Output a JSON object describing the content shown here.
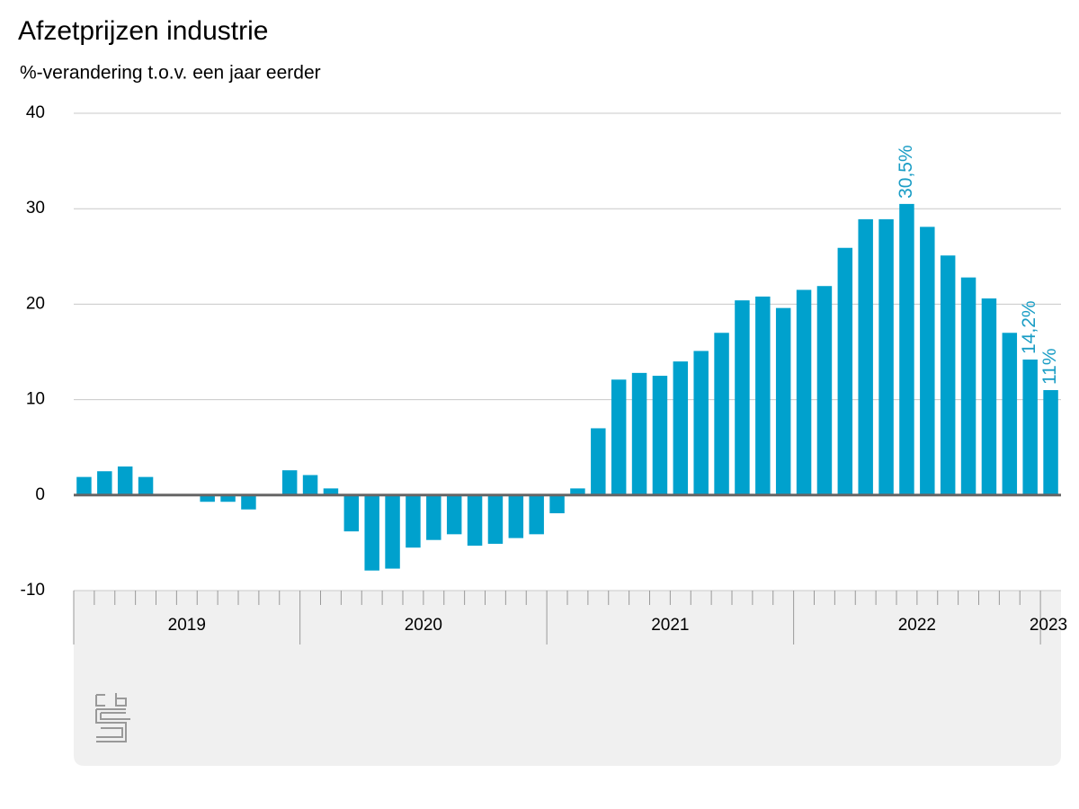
{
  "chart_data": {
    "type": "bar",
    "title": "Afzetprijzen industrie",
    "subtitle": "%-verandering t.o.v. een jaar eerder",
    "categories": [
      "2019",
      null,
      null,
      null,
      null,
      null,
      null,
      null,
      null,
      null,
      null,
      "2020",
      null,
      null,
      null,
      null,
      null,
      null,
      null,
      null,
      null,
      null,
      null,
      "2021",
      null,
      null,
      null,
      null,
      null,
      null,
      null,
      null,
      null,
      null,
      null,
      "2022",
      null,
      null,
      null,
      null,
      null,
      null,
      null,
      null,
      null,
      null,
      null,
      "2023"
    ],
    "values": [
      1.9,
      2.5,
      3.0,
      1.9,
      0,
      0,
      -0.7,
      -0.7,
      -1.5,
      0,
      2.6,
      2.1,
      0.7,
      -3.8,
      -7.9,
      -7.7,
      -5.5,
      -4.7,
      -4.1,
      -5.3,
      -5.1,
      -4.5,
      -4.1,
      -1.9,
      0.7,
      7.0,
      12.1,
      12.8,
      12.5,
      14.0,
      15.1,
      17.0,
      20.4,
      20.8,
      19.6,
      21.5,
      21.9,
      25.9,
      28.9,
      28.9,
      30.5,
      28.1,
      25.1,
      22.8,
      20.6,
      17.0,
      14.2,
      11
    ],
    "value_labels": [
      null,
      null,
      null,
      null,
      null,
      null,
      null,
      null,
      null,
      null,
      null,
      null,
      null,
      null,
      null,
      null,
      null,
      null,
      null,
      null,
      null,
      null,
      null,
      null,
      null,
      null,
      null,
      null,
      null,
      null,
      null,
      null,
      null,
      null,
      null,
      null,
      null,
      null,
      null,
      null,
      "30,5%",
      null,
      null,
      null,
      null,
      null,
      "14,2%",
      "11%"
    ],
    "color": "#00a1cd",
    "label_color": "#1a9dc5",
    "ylim": [
      -10,
      40
    ],
    "yticks": [
      -10,
      0,
      10,
      20,
      30,
      40
    ],
    "grid": true
  }
}
